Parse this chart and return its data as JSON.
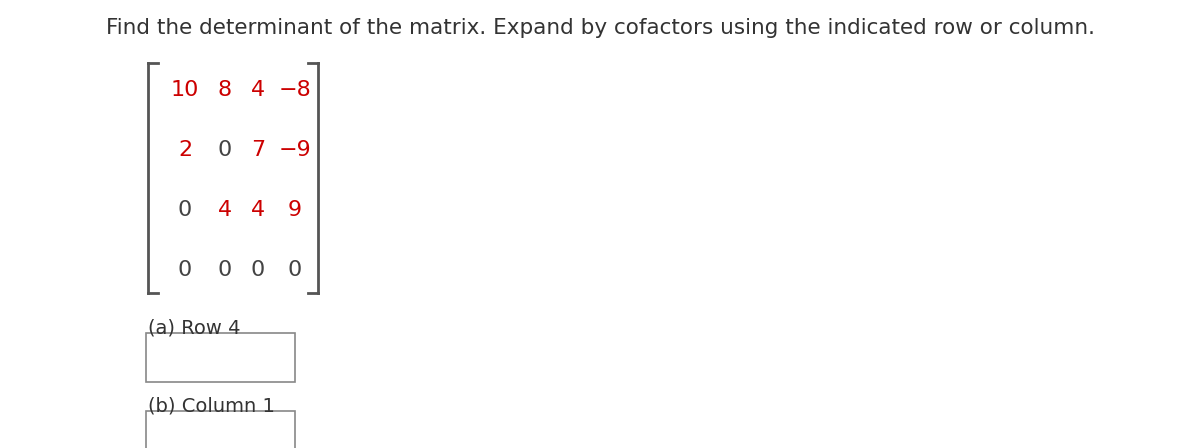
{
  "title": "Find the determinant of the matrix. Expand by cofactors using the indicated row or column.",
  "title_color": "#333333",
  "title_fontsize": 15.5,
  "matrix": [
    [
      "10",
      "8",
      "4",
      "−8"
    ],
    [
      "2",
      "0",
      "7",
      "−9"
    ],
    [
      "0",
      "4",
      "4",
      "9"
    ],
    [
      "0",
      "0",
      "0",
      "0"
    ]
  ],
  "matrix_colors": [
    [
      "#cc0000",
      "#cc0000",
      "#cc0000",
      "#cc0000"
    ],
    [
      "#cc0000",
      "#444444",
      "#cc0000",
      "#cc0000"
    ],
    [
      "#444444",
      "#cc0000",
      "#cc0000",
      "#cc0000"
    ],
    [
      "#444444",
      "#444444",
      "#444444",
      "#444444"
    ]
  ],
  "matrix_fontsize": 16,
  "label_a": "(a) Row 4",
  "label_b": "(b) Column 1",
  "label_fontsize": 14,
  "label_color": "#333333",
  "background_color": "#ffffff",
  "bracket_color": "#555555",
  "bracket_lw": 2.0
}
